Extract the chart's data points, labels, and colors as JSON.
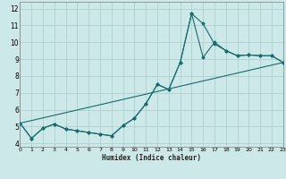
{
  "xlabel": "Humidex (Indice chaleur)",
  "xlim": [
    0,
    23
  ],
  "ylim": [
    3.8,
    12.4
  ],
  "yticks": [
    4,
    5,
    6,
    7,
    8,
    9,
    10,
    11,
    12
  ],
  "xticks": [
    0,
    1,
    2,
    3,
    4,
    5,
    6,
    7,
    8,
    9,
    10,
    11,
    12,
    13,
    14,
    15,
    16,
    17,
    18,
    19,
    20,
    21,
    22,
    23
  ],
  "bg_color": "#cce8e8",
  "grid_color": "#aacccc",
  "line_color": "#1a6b6b",
  "line1_x": [
    0,
    1,
    2,
    3,
    4,
    5,
    6,
    7,
    8,
    9,
    10,
    11,
    12,
    13,
    14,
    15,
    16,
    17,
    18,
    19,
    20,
    21,
    22,
    23
  ],
  "line1_y": [
    5.2,
    4.3,
    4.9,
    5.15,
    4.85,
    4.75,
    4.65,
    4.55,
    4.45,
    5.05,
    5.5,
    6.35,
    7.5,
    7.2,
    8.8,
    11.7,
    11.1,
    9.9,
    9.5,
    9.2,
    9.25,
    9.2,
    9.2,
    8.8
  ],
  "line2_x": [
    0,
    1,
    2,
    3,
    4,
    5,
    6,
    7,
    8,
    9,
    10,
    11,
    12,
    13,
    14,
    15,
    16,
    17,
    18,
    19,
    20,
    21,
    22,
    23
  ],
  "line2_y": [
    5.2,
    4.3,
    4.9,
    5.15,
    4.85,
    4.75,
    4.65,
    4.55,
    4.45,
    5.05,
    5.5,
    6.35,
    7.5,
    7.2,
    8.8,
    11.7,
    9.1,
    10.0,
    9.5,
    9.2,
    9.25,
    9.2,
    9.2,
    8.8
  ],
  "line3_x": [
    0,
    23
  ],
  "line3_y": [
    5.2,
    8.8
  ]
}
